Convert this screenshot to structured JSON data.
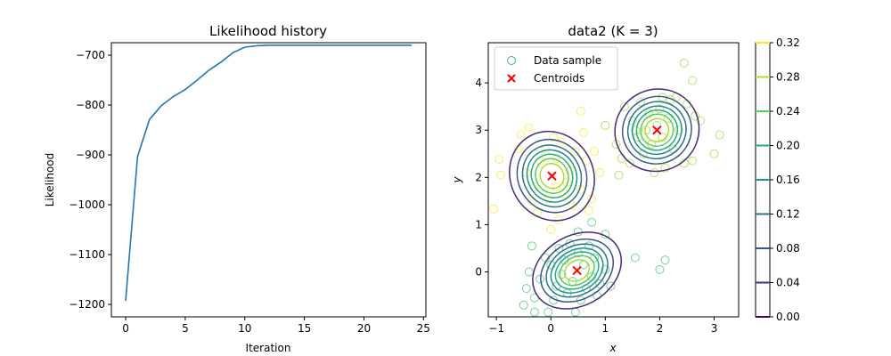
{
  "chart_data": [
    {
      "type": "line",
      "title": "Likelihood history",
      "xlabel": "Iteration",
      "ylabel": "Likelihood",
      "xlim": [
        -1.2,
        25.2
      ],
      "ylim": [
        -1225,
        -675
      ],
      "xticks": [
        0,
        5,
        10,
        15,
        20,
        25
      ],
      "yticks": [
        -1200,
        -1100,
        -1000,
        -900,
        -800,
        -700
      ],
      "ytick_labels": [
        "−1200",
        "−1100",
        "−1000",
        "−900",
        "−800",
        "−700"
      ],
      "grid": false,
      "color": "#1f77b4",
      "x": [
        0,
        1,
        2,
        3,
        4,
        5,
        6,
        7,
        8,
        9,
        10,
        11,
        12,
        13,
        14,
        15,
        16,
        17,
        18,
        19,
        20,
        21,
        22,
        23,
        24
      ],
      "y": [
        -1193,
        -903,
        -829,
        -801,
        -783,
        -769,
        -750,
        -730,
        -714,
        -695,
        -684,
        -681,
        -680,
        -680,
        -680,
        -680,
        -680,
        -680,
        -680,
        -680,
        -680,
        -680,
        -680,
        -680,
        -680
      ]
    },
    {
      "type": "scatter",
      "title": "data2 (K = 3)",
      "xlabel": "x",
      "ylabel": "y",
      "xlim": [
        -1.15,
        3.45
      ],
      "ylim": [
        -0.95,
        4.85
      ],
      "xticks": [
        -1,
        0,
        1,
        2,
        3
      ],
      "xtick_labels": [
        "−1",
        "0",
        "1",
        "2",
        "3"
      ],
      "yticks": [
        0,
        1,
        2,
        3,
        4
      ],
      "grid": false,
      "legend": {
        "position": "top-left",
        "entries": [
          {
            "label": "Data sample",
            "marker": "open-circle"
          },
          {
            "label": "Centroids",
            "marker": "x",
            "color": "#ff0000"
          }
        ]
      },
      "clusters": [
        {
          "color": "#fde725",
          "centroid": [
            0.02,
            2.03
          ],
          "sx": 0.37,
          "sy": 0.47,
          "points": [
            [
              -0.95,
              2.38
            ],
            [
              -0.92,
              2.05
            ],
            [
              -1.05,
              1.33
            ],
            [
              -0.6,
              2.6
            ],
            [
              -0.55,
              2.9
            ],
            [
              -0.4,
              3.05
            ],
            [
              -0.35,
              1.5
            ],
            [
              -0.25,
              1.25
            ],
            [
              -0.2,
              2.35
            ],
            [
              -0.3,
              1.8
            ],
            [
              -0.1,
              2.6
            ],
            [
              -0.05,
              1.55
            ],
            [
              0.05,
              2.85
            ],
            [
              0.1,
              2.4
            ],
            [
              0.15,
              1.1
            ],
            [
              0.2,
              2.75
            ],
            [
              0.3,
              1.9
            ],
            [
              0.35,
              2.15
            ],
            [
              0.4,
              1.4
            ],
            [
              0.45,
              2.55
            ],
            [
              0.55,
              1.75
            ],
            [
              0.6,
              2.95
            ],
            [
              0.65,
              2.35
            ],
            [
              0.7,
              1.3
            ],
            [
              0.75,
              1.55
            ],
            [
              0.8,
              2.55
            ],
            [
              0.9,
              2.1
            ],
            [
              0.55,
              3.4
            ],
            [
              0.0,
              0.9
            ],
            [
              0.25,
              1.65
            ],
            [
              -0.45,
              2.1
            ],
            [
              0.1,
              1.8
            ]
          ]
        },
        {
          "color": "#a0da39",
          "centroid": [
            1.95,
            3.0
          ],
          "sx": 0.38,
          "sy": 0.42,
          "points": [
            [
              2.45,
              4.42
            ],
            [
              2.6,
              4.05
            ],
            [
              1.0,
              3.1
            ],
            [
              1.2,
              2.7
            ],
            [
              1.3,
              2.4
            ],
            [
              1.35,
              3.5
            ],
            [
              1.45,
              2.3
            ],
            [
              1.5,
              3.2
            ],
            [
              1.6,
              2.85
            ],
            [
              1.65,
              3.6
            ],
            [
              1.7,
              2.5
            ],
            [
              1.75,
              3.0
            ],
            [
              1.8,
              3.35
            ],
            [
              1.85,
              2.7
            ],
            [
              1.9,
              2.1
            ],
            [
              1.95,
              3.1
            ],
            [
              2.0,
              3.45
            ],
            [
              2.05,
              2.85
            ],
            [
              2.1,
              2.2
            ],
            [
              2.15,
              3.25
            ],
            [
              2.2,
              3.65
            ],
            [
              2.25,
              2.6
            ],
            [
              2.35,
              3.0
            ],
            [
              2.45,
              2.3
            ],
            [
              2.5,
              3.55
            ],
            [
              2.6,
              2.35
            ],
            [
              2.65,
              3.3
            ],
            [
              2.75,
              3.2
            ],
            [
              3.0,
              2.5
            ],
            [
              3.1,
              2.9
            ],
            [
              1.25,
              2.05
            ],
            [
              2.3,
              3.7
            ],
            [
              1.55,
              3.0
            ],
            [
              2.05,
              3.7
            ]
          ]
        },
        {
          "color": "#4ac16d",
          "centroid": [
            0.48,
            0.03
          ],
          "sx": 0.42,
          "sy": 0.36,
          "points": [
            [
              -0.5,
              -0.7
            ],
            [
              -0.45,
              -0.35
            ],
            [
              -0.4,
              0.0
            ],
            [
              -0.35,
              0.55
            ],
            [
              -0.3,
              -0.55
            ],
            [
              -0.2,
              -0.15
            ],
            [
              -0.1,
              0.3
            ],
            [
              -0.05,
              -0.85
            ],
            [
              0.0,
              0.15
            ],
            [
              0.05,
              -0.6
            ],
            [
              0.1,
              -0.3
            ],
            [
              0.15,
              0.5
            ],
            [
              0.2,
              -0.05
            ],
            [
              0.25,
              0.25
            ],
            [
              0.3,
              -0.45
            ],
            [
              0.35,
              0.6
            ],
            [
              0.4,
              -0.2
            ],
            [
              0.45,
              -0.85
            ],
            [
              0.5,
              0.4
            ],
            [
              0.55,
              -0.6
            ],
            [
              0.6,
              0.15
            ],
            [
              0.65,
              -0.35
            ],
            [
              0.7,
              0.55
            ],
            [
              0.75,
              -0.1
            ],
            [
              0.8,
              0.3
            ],
            [
              0.85,
              -0.5
            ],
            [
              0.9,
              -0.25
            ],
            [
              1.0,
              0.8
            ],
            [
              1.0,
              0.05
            ],
            [
              1.1,
              -0.3
            ],
            [
              0.75,
              1.05
            ],
            [
              0.5,
              0.85
            ],
            [
              1.55,
              0.3
            ],
            [
              2.0,
              0.05
            ],
            [
              2.1,
              0.25
            ],
            [
              -0.3,
              -0.85
            ]
          ]
        }
      ],
      "colorbar": {
        "vmin": 0.0,
        "vmax": 0.32,
        "ticks": [
          "0.00",
          "0.04",
          "0.08",
          "0.12",
          "0.16",
          "0.20",
          "0.24",
          "0.28",
          "0.32"
        ],
        "colors": [
          "#440154",
          "#472c7a",
          "#3b518b",
          "#2c718e",
          "#21908d",
          "#27ad81",
          "#5cc863",
          "#aadc32",
          "#fde725"
        ]
      }
    }
  ]
}
